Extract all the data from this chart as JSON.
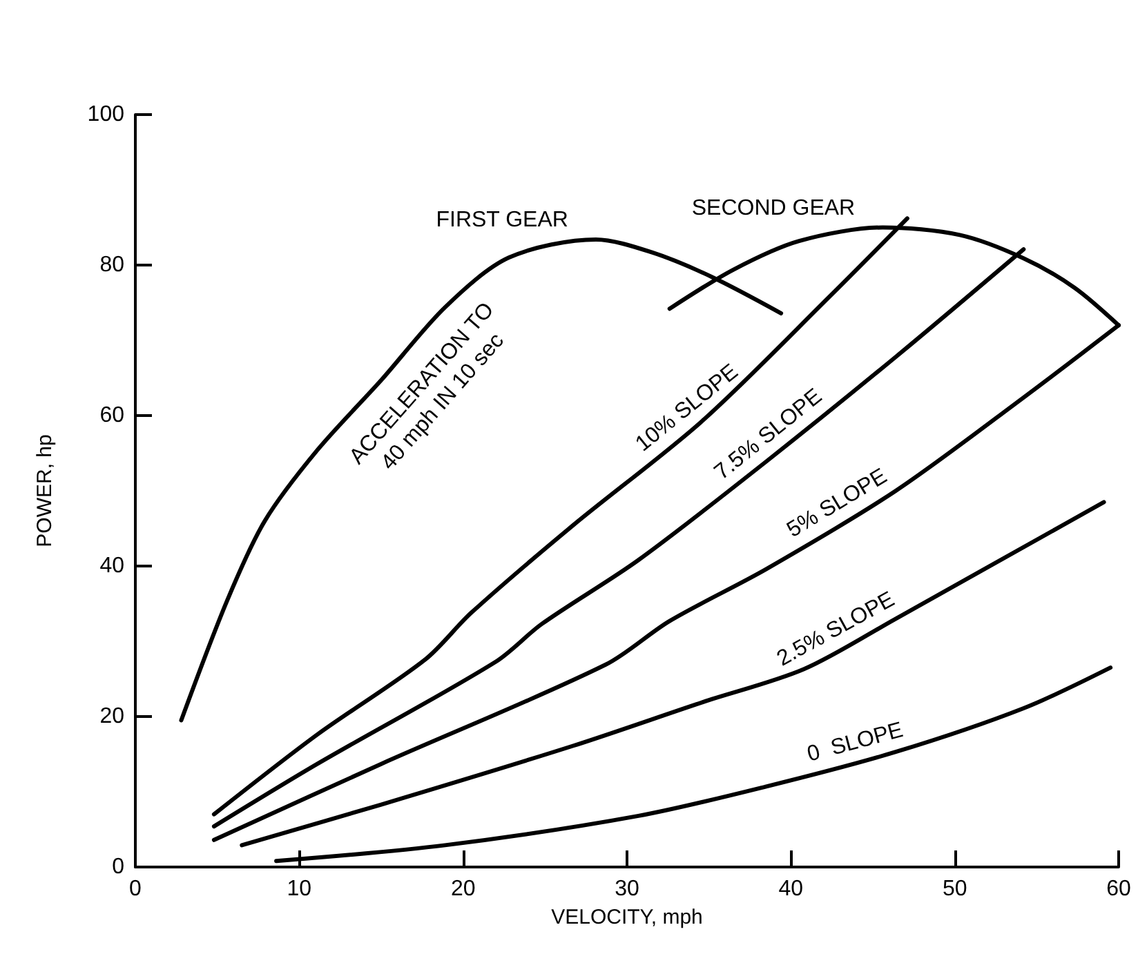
{
  "chart_data": {
    "type": "line",
    "xlabel": "VELOCITY, mph",
    "ylabel": "POWER, hp",
    "xlim": [
      0,
      60
    ],
    "ylim": [
      0,
      100
    ],
    "xticks": [
      0,
      10,
      20,
      30,
      40,
      50,
      60
    ],
    "yticks": [
      0,
      20,
      40,
      60,
      80,
      100
    ],
    "grid": false,
    "legend": false,
    "marker": "none",
    "line_style": "solid",
    "series": [
      {
        "name": "FIRST GEAR",
        "color": "#000000",
        "x": [
          2.8,
          5.6,
          7.9,
          11.1,
          15,
          18.9,
          22.8,
          28.1,
          31.5,
          35.2,
          39.4
        ],
        "values": [
          19.5,
          35.4,
          46,
          55.4,
          64.7,
          74.4,
          81,
          83.4,
          81.7,
          78.4,
          73.6
        ]
      },
      {
        "name": "SECOND GEAR",
        "color": "#000000",
        "x": [
          32.6,
          36.5,
          40.5,
          45.6,
          50.3,
          54.2,
          57.3,
          60
        ],
        "values": [
          74.2,
          79.4,
          83.2,
          85,
          84,
          80.9,
          77,
          72
        ]
      },
      {
        "name": "10% SLOPE",
        "color": "#000000",
        "x": [
          4.8,
          11.1,
          17.7,
          20.5,
          26.7,
          34.6,
          42.4,
          47.1
        ],
        "values": [
          7,
          17.6,
          27.6,
          33.8,
          45.4,
          59.3,
          75.9,
          86.2
        ]
      },
      {
        "name": "7.5% SLOPE",
        "color": "#000000",
        "x": [
          4.8,
          11.1,
          22,
          24.8,
          30.7,
          38.5,
          46.4,
          54.2
        ],
        "values": [
          5.4,
          13.7,
          27.3,
          32.3,
          40.8,
          53.9,
          67.8,
          82.1
        ]
      },
      {
        "name": "5% SLOPE",
        "color": "#000000",
        "x": [
          4.8,
          15,
          28.7,
          32.6,
          38.5,
          46.4,
          54.2,
          60
        ],
        "values": [
          3.6,
          13.7,
          26.9,
          32.7,
          39.6,
          50,
          62.4,
          72
        ]
      },
      {
        "name": "2.5% SLOPE",
        "color": "#000000",
        "x": [
          6.5,
          15,
          26.7,
          34.6,
          40.8,
          46.4,
          59.1
        ],
        "values": [
          2.9,
          8.3,
          16.1,
          21.9,
          26.3,
          33,
          48.5
        ]
      },
      {
        "name": "0  SLOPE",
        "color": "#000000",
        "x": [
          8.6,
          18.9,
          30.7,
          38.5,
          46.4,
          54.2,
          59.5
        ],
        "values": [
          0.8,
          2.9,
          6.8,
          10.7,
          15.3,
          21.1,
          26.5
        ]
      }
    ],
    "annotations": [
      "ACCELERATION TO\n40 mph IN 10 sec"
    ]
  }
}
